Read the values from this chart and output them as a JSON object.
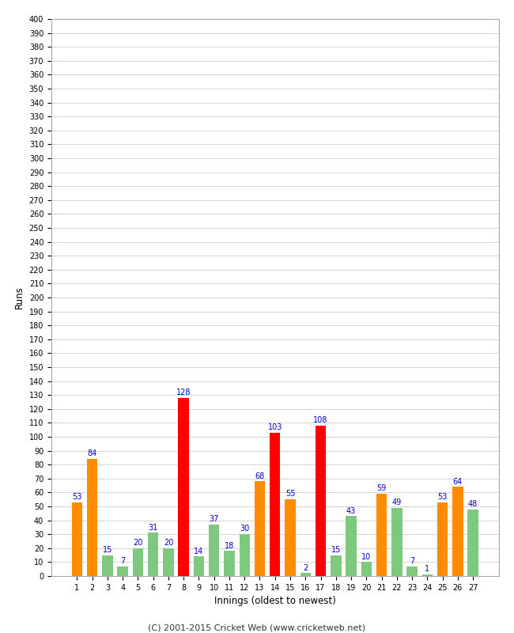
{
  "innings": [
    1,
    2,
    3,
    4,
    5,
    6,
    7,
    8,
    9,
    10,
    11,
    12,
    13,
    14,
    15,
    16,
    17,
    18,
    19,
    20,
    21,
    22,
    23,
    24,
    25,
    26,
    27
  ],
  "values": [
    53,
    84,
    15,
    7,
    20,
    31,
    20,
    128,
    14,
    37,
    18,
    30,
    68,
    103,
    55,
    2,
    108,
    15,
    43,
    10,
    59,
    49,
    7,
    1,
    53,
    64,
    48
  ],
  "colors": [
    "#ff8c00",
    "#ff8c00",
    "#7fc97f",
    "#7fc97f",
    "#7fc97f",
    "#7fc97f",
    "#7fc97f",
    "#ff0000",
    "#7fc97f",
    "#7fc97f",
    "#7fc97f",
    "#7fc97f",
    "#ff8c00",
    "#ff0000",
    "#ff8c00",
    "#7fc97f",
    "#ff0000",
    "#7fc97f",
    "#7fc97f",
    "#7fc97f",
    "#ff8c00",
    "#7fc97f",
    "#7fc97f",
    "#7fc97f",
    "#ff8c00",
    "#ff8c00",
    "#7fc97f"
  ],
  "xlabel": "Innings (oldest to newest)",
  "ylabel": "Runs",
  "ylim": [
    0,
    400
  ],
  "yticks": [
    0,
    10,
    20,
    30,
    40,
    50,
    60,
    70,
    80,
    90,
    100,
    110,
    120,
    130,
    140,
    150,
    160,
    170,
    180,
    190,
    200,
    210,
    220,
    230,
    240,
    250,
    260,
    270,
    280,
    290,
    300,
    310,
    320,
    330,
    340,
    350,
    360,
    370,
    380,
    390,
    400
  ],
  "footer": "(C) 2001-2015 Cricket Web (www.cricketweb.net)",
  "bg_color": "#ffffff",
  "grid_color": "#cccccc",
  "label_color": "#0000cc"
}
